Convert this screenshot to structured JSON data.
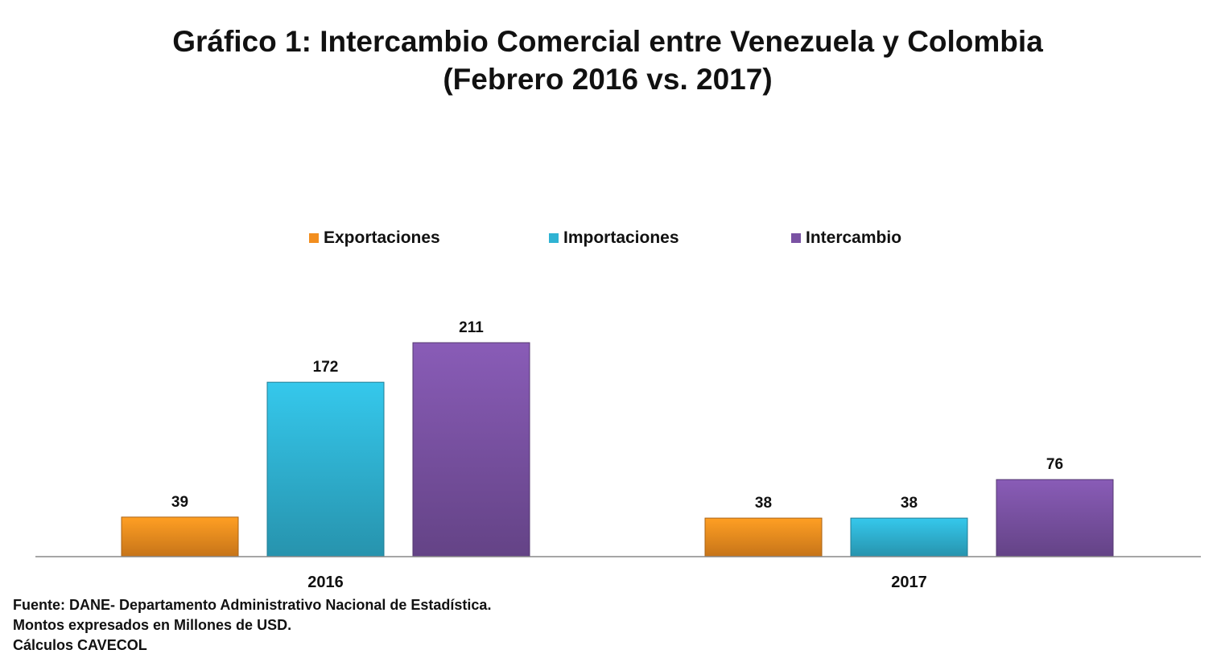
{
  "chart_data": {
    "type": "bar",
    "title": "Gráfico 1: Intercambio Comercial entre Venezuela y Colombia",
    "subtitle": "(Febrero 2016 vs. 2017)",
    "categories": [
      "2016",
      "2017"
    ],
    "series": [
      {
        "name": "Exportaciones",
        "values": [
          39,
          38
        ],
        "color": "#F28E1F"
      },
      {
        "name": "Importaciones",
        "values": [
          172,
          38
        ],
        "color": "#2FB3D3"
      },
      {
        "name": "Intercambio",
        "values": [
          211,
          76
        ],
        "color": "#7A52A3"
      }
    ],
    "data_labels": true,
    "legend_position": "top",
    "grid": false,
    "ylim": [
      0,
      211
    ]
  },
  "footer": {
    "line1": "Fuente: DANE- Departamento Administrativo Nacional de Estadística.",
    "line2": "Montos expresados en Millones de USD.",
    "line3": "Cálculos CAVECOL"
  }
}
